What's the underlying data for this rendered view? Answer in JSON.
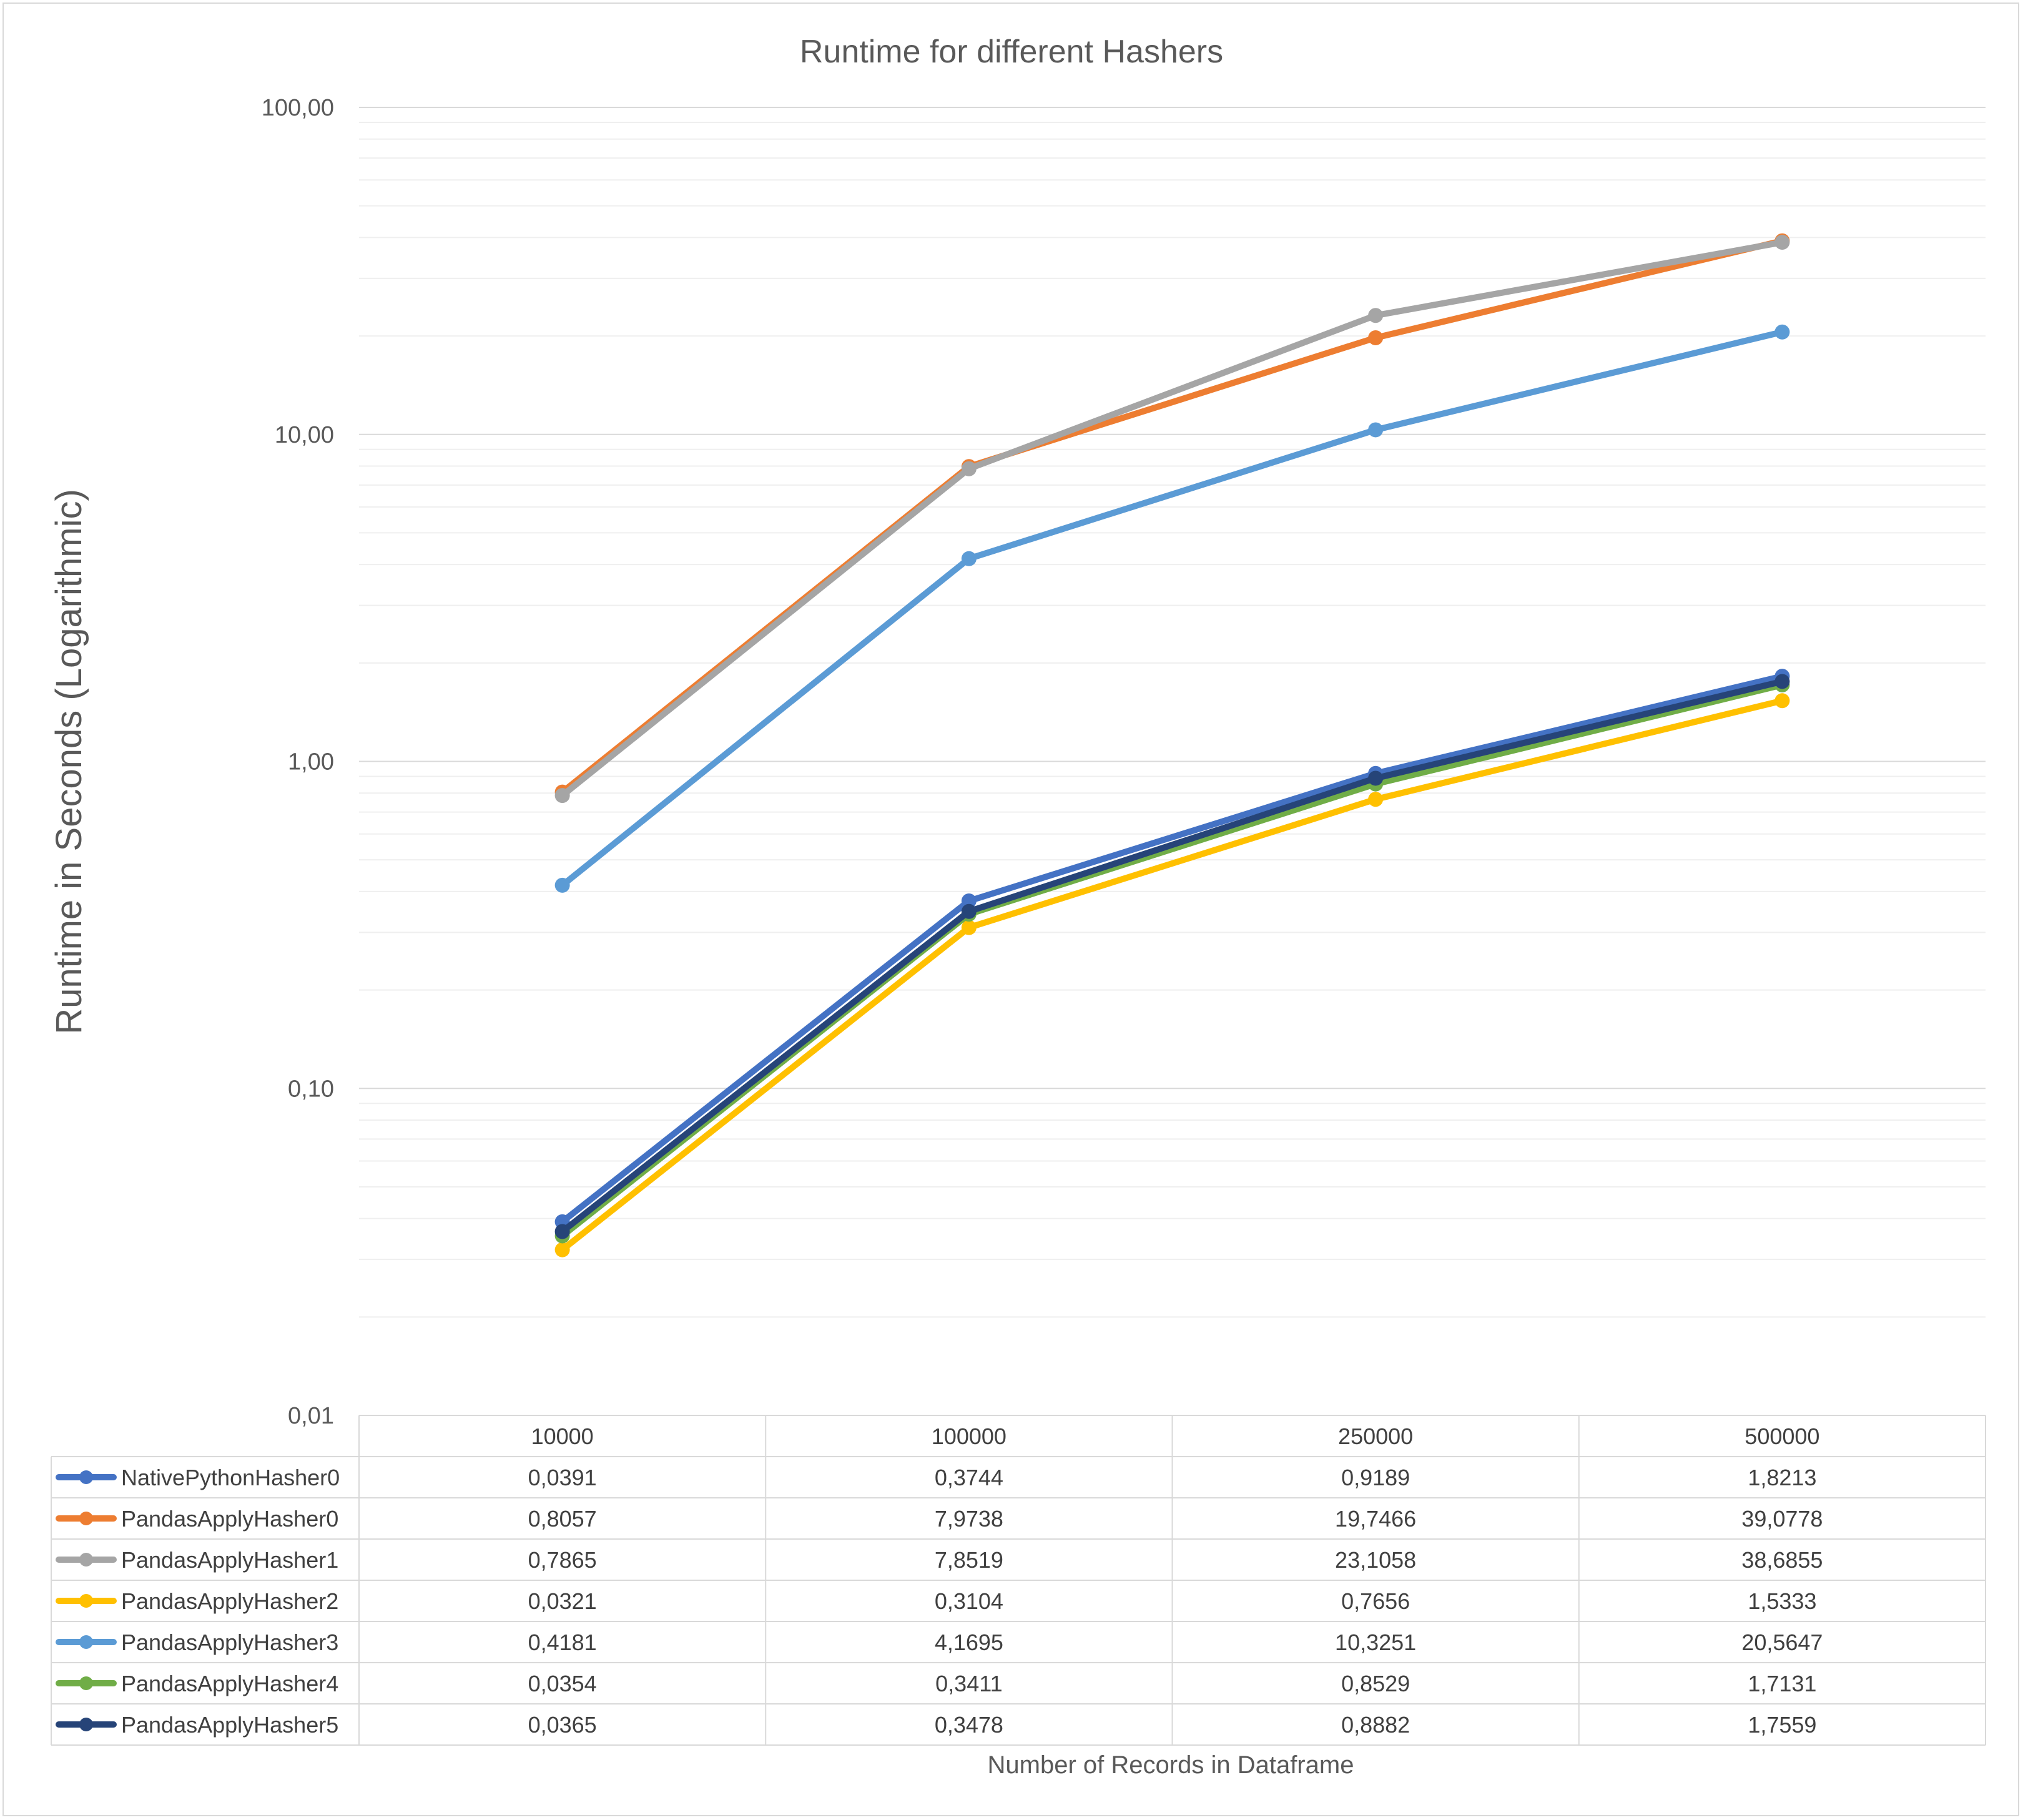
{
  "chart_data": {
    "type": "line",
    "title": "Runtime for different Hashers",
    "ylabel": "Runtime in Seconds (Logarithmic)",
    "xlabel": "Number of Records in Dataframe",
    "yscale": "log",
    "ylim": [
      0.01,
      100
    ],
    "yticks": [
      "0,01",
      "0,10",
      "1,00",
      "10,00",
      "100,00"
    ],
    "categories": [
      "10000",
      "100000",
      "250000",
      "500000"
    ],
    "grid": "major and minor horizontal",
    "legend": "data table below chart",
    "series": [
      {
        "name": "NativePythonHasher0",
        "color": "#4472c4",
        "values": [
          0.0391,
          0.3744,
          0.9189,
          1.8213
        ],
        "labels": [
          "0,0391",
          "0,3744",
          "0,9189",
          "1,8213"
        ]
      },
      {
        "name": "PandasApplyHasher0",
        "color": "#ed7d31",
        "values": [
          0.8057,
          7.9738,
          19.7466,
          39.0778
        ],
        "labels": [
          "0,8057",
          "7,9738",
          "19,7466",
          "39,0778"
        ]
      },
      {
        "name": "PandasApplyHasher1",
        "color": "#a5a5a5",
        "values": [
          0.7865,
          7.8519,
          23.1058,
          38.6855
        ],
        "labels": [
          "0,7865",
          "7,8519",
          "23,1058",
          "38,6855"
        ]
      },
      {
        "name": "PandasApplyHasher2",
        "color": "#ffc000",
        "values": [
          0.0321,
          0.3104,
          0.7656,
          1.5333
        ],
        "labels": [
          "0,0321",
          "0,3104",
          "0,7656",
          "1,5333"
        ]
      },
      {
        "name": "PandasApplyHasher3",
        "color": "#5b9bd5",
        "values": [
          0.4181,
          4.1695,
          10.3251,
          20.5647
        ],
        "labels": [
          "0,4181",
          "4,1695",
          "10,3251",
          "20,5647"
        ]
      },
      {
        "name": "PandasApplyHasher4",
        "color": "#70ad47",
        "values": [
          0.0354,
          0.3411,
          0.8529,
          1.7131
        ],
        "labels": [
          "0,0354",
          "0,3411",
          "0,8529",
          "1,7131"
        ]
      },
      {
        "name": "PandasApplyHasher5",
        "color": "#264478",
        "values": [
          0.0365,
          0.3478,
          0.8882,
          1.7559
        ],
        "labels": [
          "0,0365",
          "0,3478",
          "0,8882",
          "1,7559"
        ]
      }
    ]
  }
}
